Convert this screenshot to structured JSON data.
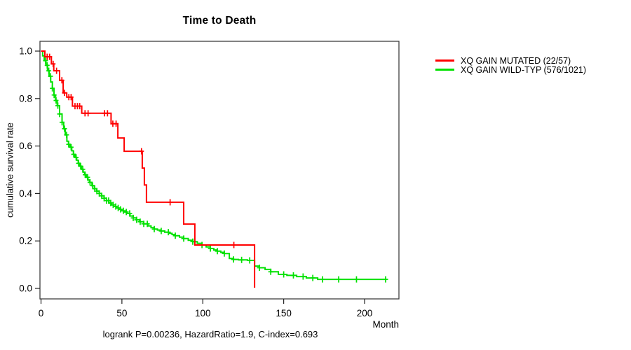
{
  "title": "Time to Death",
  "chart_data": {
    "type": "line",
    "subtype": "kaplan-meier-step-survival",
    "title": "Time to Death",
    "xlabel": "Month",
    "ylabel": "cumulative survival rate",
    "x_ticks": [
      0,
      50,
      100,
      150,
      200
    ],
    "y_ticks": [
      "0.0",
      "0.2",
      "0.4",
      "0.6",
      "0.8",
      "1.0"
    ],
    "xlim": [
      0,
      221
    ],
    "ylim": [
      0.0,
      1.04
    ],
    "grid": false,
    "legend_position": "right-outside",
    "annotation": "logrank P=0.00236, HazardRatio=1.9, C-index=0.693",
    "axis_color": "#3f3f3f",
    "series": [
      {
        "name": "XQ GAIN MUTATED (22/57)",
        "color": "#ff0000",
        "events": "22/57",
        "steps": [
          [
            0,
            1.0
          ],
          [
            2.4,
            0.976
          ],
          [
            6.4,
            0.946
          ],
          [
            7.9,
            0.917
          ],
          [
            11.5,
            0.877
          ],
          [
            13.7,
            0.824
          ],
          [
            15.9,
            0.806
          ],
          [
            19.4,
            0.768
          ],
          [
            25.2,
            0.738
          ],
          [
            43.3,
            0.694
          ],
          [
            47.5,
            0.634
          ],
          [
            51.4,
            0.578
          ],
          [
            62.6,
            0.507
          ],
          [
            63.9,
            0.436
          ],
          [
            65.2,
            0.363
          ],
          [
            88.2,
            0.271
          ],
          [
            95.1,
            0.183
          ],
          [
            132,
            0.003
          ]
        ],
        "censor_times": [
          3.8,
          5.3,
          7.5,
          9.6,
          12.9,
          14.5,
          17.2,
          18.6,
          21,
          22.5,
          23.9,
          27.2,
          29.1,
          39.2,
          41.1,
          44.4,
          46.4,
          62.1,
          79.8,
          119.2
        ]
      },
      {
        "name": "XQ GAIN WILD-TYP (576/1021)",
        "color": "#00e100",
        "events": "576/1021",
        "steps": [
          [
            0,
            1.0
          ],
          [
            1,
            0.98
          ],
          [
            2,
            0.96
          ],
          [
            3,
            0.94
          ],
          [
            4,
            0.917
          ],
          [
            5,
            0.894
          ],
          [
            6,
            0.87
          ],
          [
            7,
            0.843
          ],
          [
            8,
            0.815
          ],
          [
            9,
            0.792
          ],
          [
            10,
            0.77
          ],
          [
            11.5,
            0.735
          ],
          [
            13,
            0.7
          ],
          [
            14,
            0.673
          ],
          [
            15,
            0.647
          ],
          [
            16,
            0.62
          ],
          [
            17,
            0.607
          ],
          [
            18,
            0.595
          ],
          [
            19,
            0.58
          ],
          [
            20,
            0.565
          ],
          [
            21,
            0.552
          ],
          [
            22,
            0.54
          ],
          [
            23,
            0.527
          ],
          [
            24,
            0.515
          ],
          [
            25,
            0.502
          ],
          [
            26,
            0.49
          ],
          [
            27,
            0.479
          ],
          [
            28,
            0.468
          ],
          [
            29,
            0.457
          ],
          [
            30,
            0.447
          ],
          [
            31.5,
            0.433
          ],
          [
            33,
            0.42
          ],
          [
            34.5,
            0.41
          ],
          [
            36,
            0.4
          ],
          [
            37.5,
            0.39
          ],
          [
            39,
            0.38
          ],
          [
            40.5,
            0.37
          ],
          [
            42,
            0.36
          ],
          [
            43.5,
            0.352
          ],
          [
            45,
            0.345
          ],
          [
            46.5,
            0.339
          ],
          [
            48,
            0.333
          ],
          [
            49.5,
            0.327
          ],
          [
            51,
            0.322
          ],
          [
            53,
            0.316
          ],
          [
            55,
            0.305
          ],
          [
            57,
            0.297
          ],
          [
            59,
            0.289
          ],
          [
            61,
            0.281
          ],
          [
            63.5,
            0.272
          ],
          [
            66,
            0.263
          ],
          [
            68,
            0.256
          ],
          [
            70,
            0.25
          ],
          [
            72,
            0.246
          ],
          [
            74,
            0.242
          ],
          [
            76.5,
            0.237
          ],
          [
            79,
            0.232
          ],
          [
            81,
            0.227
          ],
          [
            83,
            0.222
          ],
          [
            85.6,
            0.216
          ],
          [
            88.2,
            0.21
          ],
          [
            91,
            0.203
          ],
          [
            93.8,
            0.197
          ],
          [
            96.6,
            0.19
          ],
          [
            99.5,
            0.183
          ],
          [
            102.1,
            0.175
          ],
          [
            104.7,
            0.168
          ],
          [
            106.8,
            0.162
          ],
          [
            109,
            0.157
          ],
          [
            111.1,
            0.152
          ],
          [
            113.3,
            0.147
          ],
          [
            116.4,
            0.126
          ],
          [
            119,
            0.122
          ],
          [
            122,
            0.12
          ],
          [
            127.6,
            0.118
          ],
          [
            132,
            0.094
          ],
          [
            135,
            0.087
          ],
          [
            138.5,
            0.08
          ],
          [
            142,
            0.07
          ],
          [
            146.7,
            0.059
          ],
          [
            152,
            0.055
          ],
          [
            158,
            0.05
          ],
          [
            164,
            0.044
          ],
          [
            171,
            0.038
          ],
          [
            213.5,
            0.038
          ]
        ],
        "censor_times": [
          2.8,
          3.8,
          4.8,
          5.9,
          7,
          8.1,
          9.3,
          10.4,
          11.5,
          13,
          14.5,
          15.8,
          17.1,
          18.6,
          20.2,
          21.7,
          23.2,
          24.5,
          25.8,
          27.3,
          28.8,
          30.3,
          31.9,
          33.2,
          34.5,
          36,
          37.5,
          39,
          40.5,
          41.8,
          43.1,
          44.6,
          46.2,
          47.7,
          49.2,
          50.9,
          52.7,
          54.8,
          57,
          59.1,
          61.3,
          63.5,
          65.7,
          70,
          74.3,
          78.7,
          83,
          88.2,
          93.8,
          99.5,
          104.7,
          109,
          113.3,
          119,
          124,
          129,
          135,
          142,
          150,
          156,
          162,
          168,
          174,
          184,
          195,
          213
        ]
      }
    ]
  }
}
